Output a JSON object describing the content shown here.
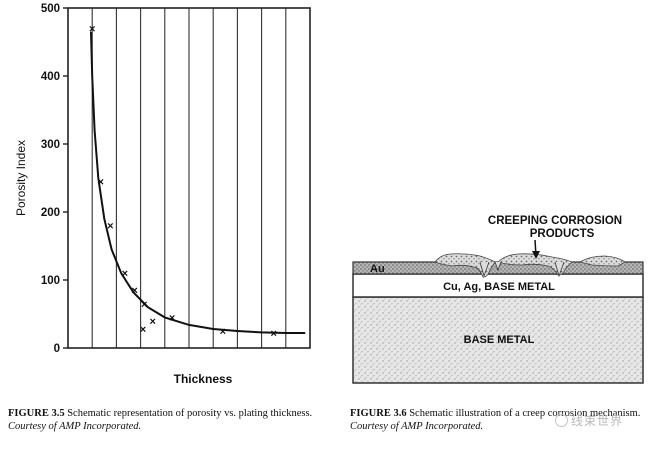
{
  "figure_left": {
    "caption_label": "FIGURE 3.5",
    "caption_text": "Schematic representation of porosity vs. plating thickness.",
    "caption_credit": "Courtesy of AMP Incorporated.",
    "chart_data": {
      "type": "scatter",
      "title": "",
      "xlabel": "Thickness",
      "ylabel": "Porosity Index",
      "ylim": [
        0,
        500
      ],
      "yticks": [
        "0",
        "100",
        "200",
        "300",
        "400",
        "500"
      ],
      "x_gridlines": 10,
      "grid": true,
      "series": [
        {
          "marker": "x",
          "x": [
            1.0,
            1.35,
            1.75,
            2.35,
            2.75,
            3.15,
            3.1,
            3.5,
            4.3,
            6.4,
            8.5
          ],
          "y": [
            470,
            245,
            180,
            110,
            85,
            65,
            28,
            40,
            45,
            25,
            22
          ]
        },
        {
          "marker": "line",
          "x": [
            0.95,
            1.0,
            1.1,
            1.25,
            1.5,
            1.8,
            2.2,
            2.7,
            3.3,
            4.0,
            5.0,
            6.0,
            7.0,
            8.0,
            9.0,
            9.8
          ],
          "y": [
            465,
            400,
            320,
            250,
            190,
            145,
            110,
            82,
            60,
            45,
            34,
            28,
            25,
            23,
            22,
            22
          ]
        }
      ]
    }
  },
  "figure_right": {
    "caption_label": "FIGURE 3.6",
    "caption_text": "Schematic illustration of a creep corrosion mechanism.",
    "caption_credit": "Courtesy of AMP Incorporated.",
    "labels": {
      "callout": "CREEPING CORROSION\nPRODUCTS",
      "au": "Au",
      "middle_layer": "Cu, Ag, BASE METAL",
      "bottom_layer": "BASE METAL"
    }
  },
  "watermark": "线束世界"
}
